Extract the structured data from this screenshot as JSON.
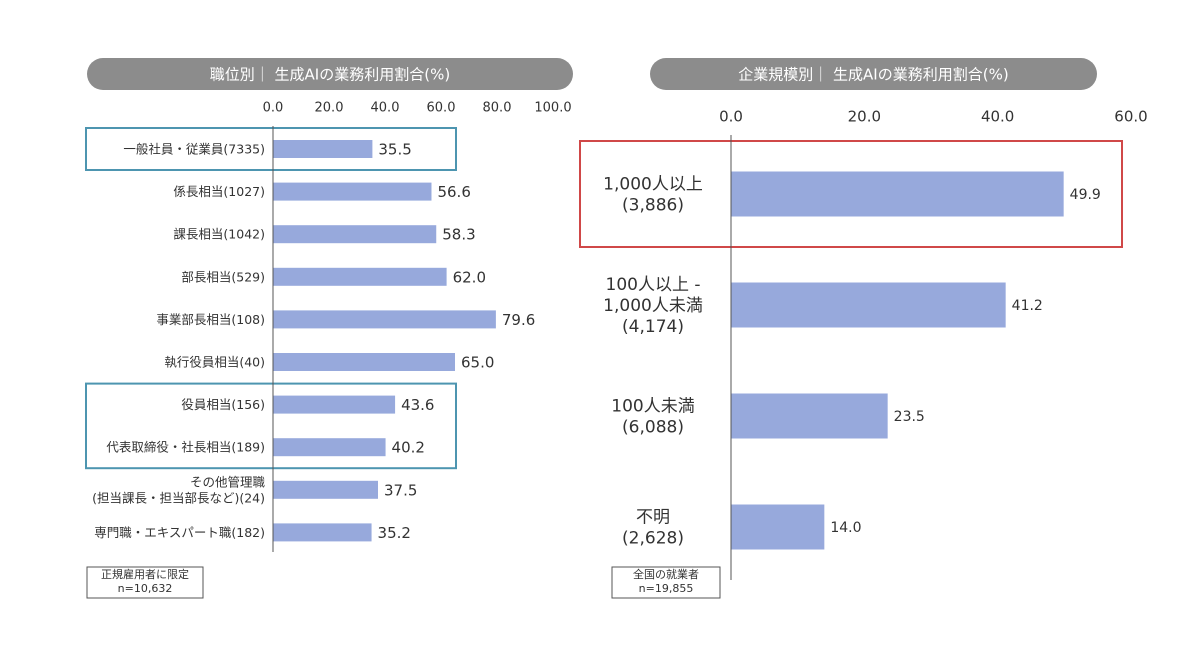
{
  "chart_data": [
    {
      "type": "barh",
      "title": "職位別｜ 生成AIの業務利用割合(%)",
      "categories": [
        [
          "一般社員・従業員(7335)"
        ],
        [
          "係長相当(1027)"
        ],
        [
          "課長相当(1042)"
        ],
        [
          "部長相当(529)"
        ],
        [
          "事業部長相当(108)"
        ],
        [
          "執行役員相当(40)"
        ],
        [
          "役員相当(156)"
        ],
        [
          "代表取締役・社長相当(189)"
        ],
        [
          "その他管理職",
          "(担当課長・担当部長など)(24)"
        ],
        [
          "専門職・エキスパート職(182)"
        ]
      ],
      "values": [
        35.5,
        56.6,
        58.3,
        62.0,
        79.6,
        65.0,
        43.6,
        40.2,
        37.5,
        35.2
      ],
      "value_labels": [
        "35.5",
        "56.6",
        "58.3",
        "62.0",
        "79.6",
        "65.0",
        "43.6",
        "40.2",
        "37.5",
        "35.2"
      ],
      "color": "#97a9dc",
      "xlim": [
        0,
        100
      ],
      "xticks": [
        {
          "value": 0,
          "label": "0.0"
        },
        {
          "value": 20,
          "label": "20.0"
        },
        {
          "value": 40,
          "label": "40.0"
        },
        {
          "value": 60,
          "label": "60.0"
        },
        {
          "value": 80,
          "label": "80.0"
        },
        {
          "value": 100,
          "label": "100.0"
        }
      ],
      "highlight_groups": [
        [
          0
        ],
        [
          6,
          7
        ]
      ],
      "highlight_color": "#4d95b0",
      "note": [
        "正規雇用者に限定",
        "n=10,632"
      ]
    },
    {
      "type": "barh",
      "title": "企業規模別｜ 生成AIの業務利用割合(%)",
      "categories": [
        [
          "1,000人以上",
          "(3,886)"
        ],
        [
          "100人以上 -",
          "1,000人未満",
          "(4,174)"
        ],
        [
          "100人未満",
          "(6,088)"
        ],
        [
          "不明",
          "(2,628)"
        ]
      ],
      "values": [
        49.9,
        41.2,
        23.5,
        14.0
      ],
      "value_labels": [
        "49.9",
        "41.2",
        "23.5",
        "14.0"
      ],
      "color": "#97a9dc",
      "xlim": [
        0,
        60
      ],
      "xticks": [
        {
          "value": 0,
          "label": "0.0"
        },
        {
          "value": 20,
          "label": "20.0"
        },
        {
          "value": 40,
          "label": "40.0"
        },
        {
          "value": 60,
          "label": "60.0"
        }
      ],
      "highlight_groups": [
        [
          0
        ]
      ],
      "highlight_color": "#d04848",
      "note": [
        "全国の就業者",
        "n=19,855"
      ]
    }
  ]
}
